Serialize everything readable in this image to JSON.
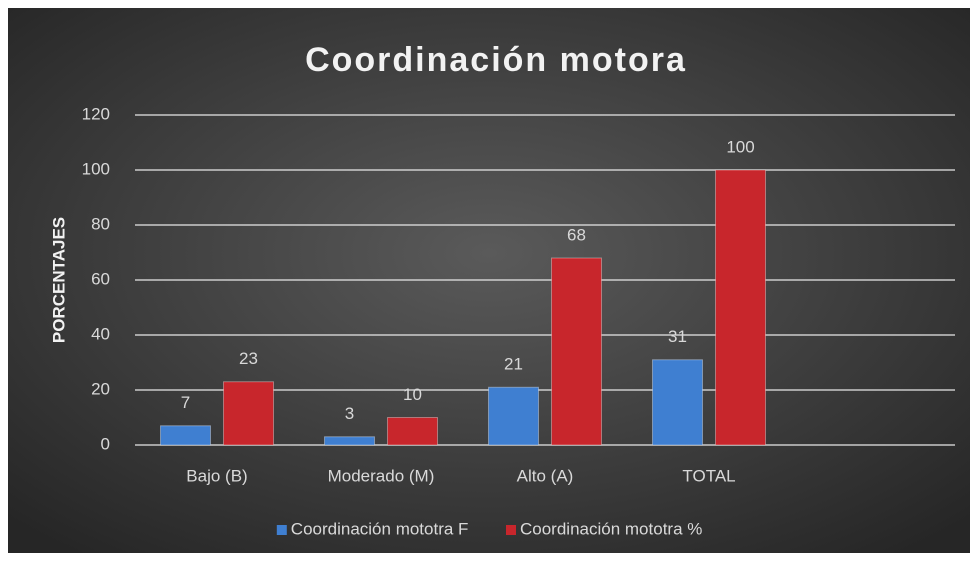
{
  "chart_data": {
    "type": "bar",
    "title": "Coordinación motora",
    "y_label": "PORCENTAJES",
    "categories": [
      "Bajo (B)",
      "Moderado (M)",
      "Alto (A)",
      "TOTAL",
      null
    ],
    "series": [
      {
        "name": "Coordinación mototra F",
        "color": "#3f7fd1",
        "values": [
          7,
          3,
          21,
          31,
          null
        ]
      },
      {
        "name": "Coordinación mototra %",
        "color": "#c8262c",
        "values": [
          23,
          10,
          68,
          100,
          null
        ]
      }
    ],
    "ylim": [
      0,
      120
    ],
    "yticks": [
      0,
      20,
      40,
      60,
      80,
      100,
      120
    ],
    "grid": true,
    "legend": "bottom",
    "data_labels": true
  }
}
